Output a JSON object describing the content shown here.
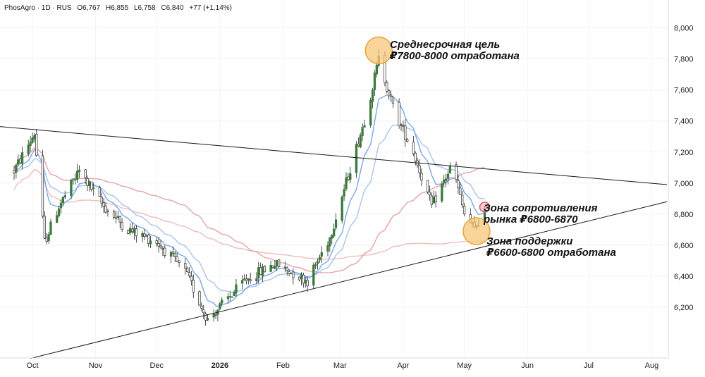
{
  "header": {
    "symbol": "PhosAgro · 1D · RUS",
    "open": "O6,767",
    "high": "H6,855",
    "low": "L6,758",
    "close": "C6,840",
    "change": "+77 (+1.14%)"
  },
  "colors": {
    "candle_up": "#3a7a3a",
    "candle_down": "#2a2a2a",
    "ema_fast": "#7aa7e8",
    "ema_slow": "#a9c3ee",
    "sma_long": "#e7a3a3",
    "sma_long2": "#f0bcbc",
    "trendline": "#1a1a1a",
    "highlight_fill": "#f7c77a",
    "highlight_stroke": "#e8a33a",
    "resistance_stroke": "#e05a6a"
  },
  "chart_data": {
    "type": "candlestick",
    "instrument": "PhosAgro",
    "timeframe": "1D",
    "y_ticks": [
      "6,200",
      "6,400",
      "6,600",
      "6,800",
      "7,000",
      "7,200",
      "7,400",
      "7,600",
      "7,800",
      "8,000"
    ],
    "x_ticks": [
      "Oct",
      "Nov",
      "Dec",
      "2026",
      "Feb",
      "Mar",
      "Apr",
      "May",
      "Jun",
      "Jul",
      "Aug"
    ],
    "ylim": [
      5900,
      8180
    ],
    "price_path": [
      {
        "date": "2025-09-22",
        "price": 7080
      },
      {
        "date": "2025-10-02",
        "price": 7320
      },
      {
        "date": "2025-10-07",
        "price": 6620
      },
      {
        "date": "2025-10-14",
        "price": 6850
      },
      {
        "date": "2025-10-24",
        "price": 7080
      },
      {
        "date": "2025-11-05",
        "price": 6850
      },
      {
        "date": "2025-11-17",
        "price": 6700
      },
      {
        "date": "2025-12-01",
        "price": 6620
      },
      {
        "date": "2025-12-15",
        "price": 6430
      },
      {
        "date": "2025-12-26",
        "price": 6120
      },
      {
        "date": "2026-01-14",
        "price": 6380
      },
      {
        "date": "2026-01-28",
        "price": 6480
      },
      {
        "date": "2026-02-13",
        "price": 6370
      },
      {
        "date": "2026-02-24",
        "price": 6650
      },
      {
        "date": "2026-03-05",
        "price": 7050
      },
      {
        "date": "2026-03-14",
        "price": 7450
      },
      {
        "date": "2026-03-20",
        "price": 7800
      },
      {
        "date": "2026-03-28",
        "price": 7450
      },
      {
        "date": "2026-04-06",
        "price": 7200
      },
      {
        "date": "2026-04-15",
        "price": 6850
      },
      {
        "date": "2026-04-25",
        "price": 7120
      },
      {
        "date": "2026-05-01",
        "price": 6800
      },
      {
        "date": "2026-05-06",
        "price": 6700
      },
      {
        "date": "2026-05-11",
        "price": 6840
      }
    ],
    "lines": [
      {
        "points": [
          {
            "date": "2025-09-01",
            "price": 7380
          },
          {
            "date": "2026-08-20",
            "price": 6990
          }
        ]
      },
      {
        "points": [
          {
            "date": "2025-09-30",
            "price": 5870
          },
          {
            "date": "2026-08-20",
            "price": 6880
          }
        ]
      }
    ],
    "annotations": [
      {
        "text": "Среднесрочная цель ₽7800-8000 отработана",
        "line1": "Среднесрочная цель",
        "line2": "₽7800-8000 отработана"
      },
      {
        "text": "Зона сопротивления рынка ₽6800-6870",
        "line1": "Зона сопротивления",
        "line2": "рынка ₽6800-6870"
      },
      {
        "text": "Зона поддержки ₽6600-6800 отработана",
        "line1": "Зона поддержки",
        "line2": "₽6600-6800 отработана"
      }
    ]
  }
}
